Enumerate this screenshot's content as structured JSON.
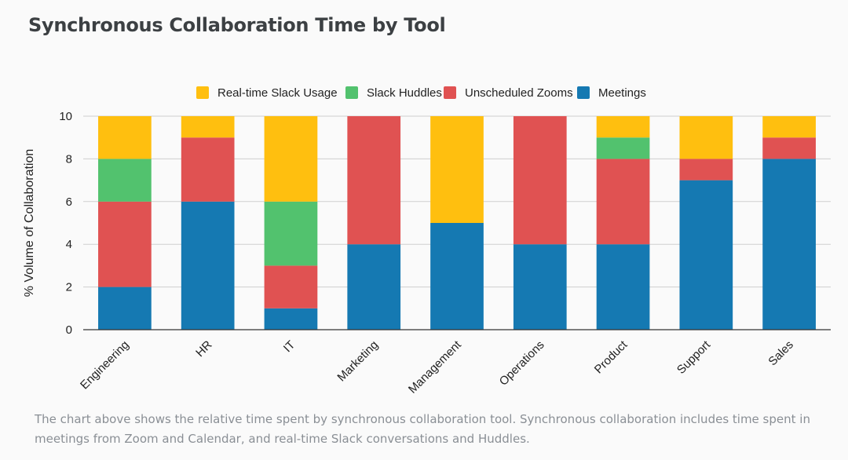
{
  "page": {
    "title": "Synchronous Collaboration Time by Tool",
    "caption": "The chart above shows the relative time spent by synchronous collaboration tool. Synchronous collaboration includes time spent in meetings from Zoom and Calendar, and real-time Slack conversations and Huddles."
  },
  "chart_data": {
    "type": "bar",
    "stacked": true,
    "title": "Synchronous Collaboration Time by Tool",
    "xlabel": "",
    "ylabel": "% Volume of Collaboration",
    "ylim": [
      0,
      10
    ],
    "yticks": [
      0,
      2,
      4,
      6,
      8,
      10
    ],
    "grid": true,
    "legend_position": "top",
    "categories": [
      "Engineering",
      "HR",
      "IT",
      "Marketing",
      "Management",
      "Operations",
      "Product",
      "Support",
      "Sales"
    ],
    "series": [
      {
        "name": "Meetings",
        "color": "#1579b2",
        "values": [
          2,
          6,
          1,
          4,
          5,
          4,
          4,
          7,
          8
        ]
      },
      {
        "name": "Unscheduled Zooms",
        "color": "#e05252",
        "values": [
          4,
          3,
          2,
          6,
          0,
          6,
          4,
          1,
          1
        ]
      },
      {
        "name": "Slack Huddles",
        "color": "#52c26e",
        "values": [
          2,
          0,
          3,
          0,
          0,
          0,
          1,
          0,
          0
        ]
      },
      {
        "name": "Real-time Slack Usage",
        "color": "#ffbf0f",
        "values": [
          2,
          1,
          4,
          0,
          5,
          0,
          1,
          2,
          1
        ]
      }
    ],
    "legend_order": [
      "Real-time Slack Usage",
      "Slack Huddles",
      "Unscheduled Zooms",
      "Meetings"
    ]
  }
}
